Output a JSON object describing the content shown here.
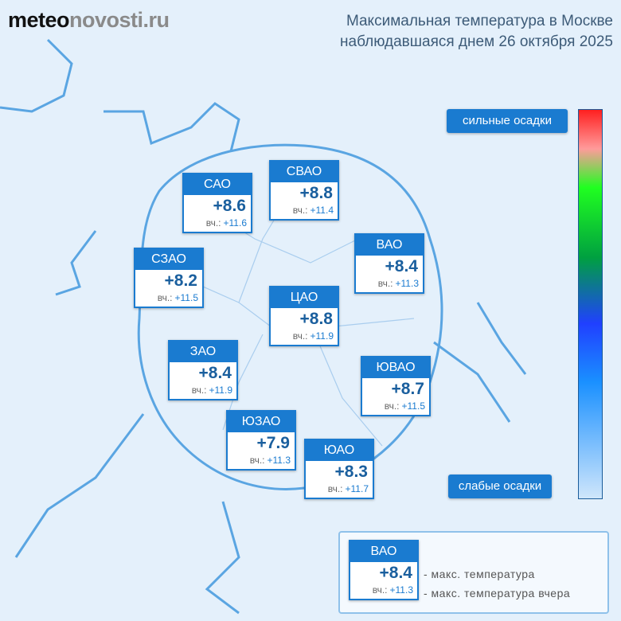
{
  "logo": {
    "part1": "meteo",
    "part2": "novosti.ru"
  },
  "title": {
    "line1": "Максимальная температура в Москве",
    "line2": "наблюдавшаяся днем 26 октября 2025"
  },
  "districts": [
    {
      "name": "САО",
      "temp": "+8.6",
      "prev_label": "вч.:",
      "prev": "+11.6"
    },
    {
      "name": "СВАО",
      "temp": "+8.8",
      "prev_label": "вч.:",
      "prev": "+11.4"
    },
    {
      "name": "ВАО",
      "temp": "+8.4",
      "prev_label": "вч.:",
      "prev": "+11.3"
    },
    {
      "name": "СЗАО",
      "temp": "+8.2",
      "prev_label": "вч.:",
      "prev": "+11.5"
    },
    {
      "name": "ЦАО",
      "temp": "+8.8",
      "prev_label": "вч.:",
      "prev": "+11.9"
    },
    {
      "name": "ЗАО",
      "temp": "+8.4",
      "prev_label": "вч.:",
      "prev": "+11.9"
    },
    {
      "name": "ЮВАО",
      "temp": "+8.7",
      "prev_label": "вч.:",
      "prev": "+11.5"
    },
    {
      "name": "ЮЗАО",
      "temp": "+7.9",
      "prev_label": "вч.:",
      "prev": "+11.3"
    },
    {
      "name": "ЮАО",
      "temp": "+8.3",
      "prev_label": "вч.:",
      "prev": "+11.7"
    }
  ],
  "scale": {
    "top_label": "сильные осадки",
    "bottom_label": "слабые осадки"
  },
  "key": {
    "name": "ВАО",
    "temp": "+8.4",
    "prev_label": "вч.:",
    "prev": "+11.3",
    "temp_note": "- макс. температура",
    "prev_note": "- макс. температура вчера"
  }
}
